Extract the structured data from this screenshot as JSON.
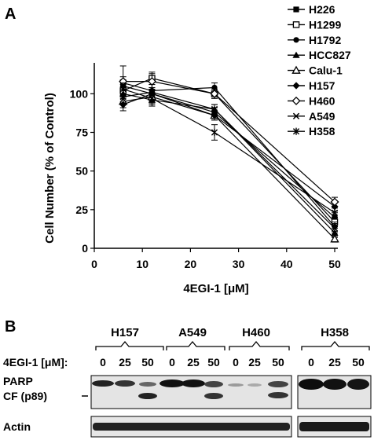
{
  "panel_a": {
    "letter": "A"
  },
  "panel_b": {
    "letter": "B",
    "treatment_label": "4EGI-1 [μM]:",
    "groups": [
      {
        "name": "H157",
        "doses": [
          "0",
          "25",
          "50"
        ]
      },
      {
        "name": "A549",
        "doses": [
          "0",
          "25",
          "50"
        ]
      },
      {
        "name": "H460",
        "doses": [
          "0",
          "25",
          "50"
        ]
      },
      {
        "name": "H358",
        "doses": [
          "0",
          "25",
          "50"
        ]
      }
    ],
    "blots": [
      {
        "labels": [
          "PARP",
          "CF (p89)"
        ]
      },
      {
        "labels": [
          "Actin"
        ]
      }
    ]
  },
  "chart_data": {
    "type": "line",
    "title": "",
    "xlabel": "4EGI-1 [μM]",
    "ylabel": "Cell Number (% of Control)",
    "xlim": [
      0,
      50
    ],
    "ylim": [
      0,
      120
    ],
    "xticks": [
      0,
      10,
      20,
      30,
      40,
      50
    ],
    "yticks": [
      0,
      25,
      50,
      75,
      100
    ],
    "grid": false,
    "legend_position": "top-right",
    "series": [
      {
        "name": "H226",
        "marker": "filled-square",
        "x": [
          6,
          12,
          25,
          50
        ],
        "y": [
          105,
          100,
          88,
          20
        ],
        "err": [
          4,
          4,
          3,
          3
        ]
      },
      {
        "name": "H1299",
        "marker": "open-square",
        "x": [
          6,
          12,
          25,
          50
        ],
        "y": [
          102,
          110,
          100,
          17
        ],
        "err": [
          4,
          4,
          3,
          3
        ]
      },
      {
        "name": "H1792",
        "marker": "filled-circle",
        "x": [
          6,
          12,
          25,
          50
        ],
        "y": [
          107,
          102,
          104,
          14
        ],
        "err": [
          4,
          4,
          3,
          3
        ]
      },
      {
        "name": "HCC827",
        "marker": "filled-triangle",
        "x": [
          6,
          12,
          25,
          50
        ],
        "y": [
          100,
          96,
          90,
          10
        ],
        "err": [
          5,
          4,
          3,
          3
        ]
      },
      {
        "name": "Calu-1",
        "marker": "open-triangle",
        "x": [
          6,
          12,
          25,
          50
        ],
        "y": [
          95,
          98,
          86,
          6
        ],
        "err": [
          4,
          4,
          3,
          2
        ]
      },
      {
        "name": "H157",
        "marker": "filled-diamond",
        "x": [
          6,
          12,
          25,
          50
        ],
        "y": [
          93,
          100,
          86,
          27
        ],
        "err": [
          4,
          4,
          3,
          3
        ]
      },
      {
        "name": "H460",
        "marker": "open-diamond",
        "x": [
          6,
          12,
          25,
          50
        ],
        "y": [
          108,
          108,
          100,
          30
        ],
        "err": [
          10,
          5,
          3,
          3
        ]
      },
      {
        "name": "A549",
        "marker": "x",
        "x": [
          6,
          12,
          25,
          50
        ],
        "y": [
          98,
          101,
          90,
          13
        ],
        "err": [
          4,
          5,
          3,
          3
        ]
      },
      {
        "name": "H358",
        "marker": "star",
        "x": [
          6,
          12,
          25,
          50
        ],
        "y": [
          103,
          97,
          75,
          23
        ],
        "err": [
          4,
          4,
          5,
          3
        ]
      }
    ]
  }
}
